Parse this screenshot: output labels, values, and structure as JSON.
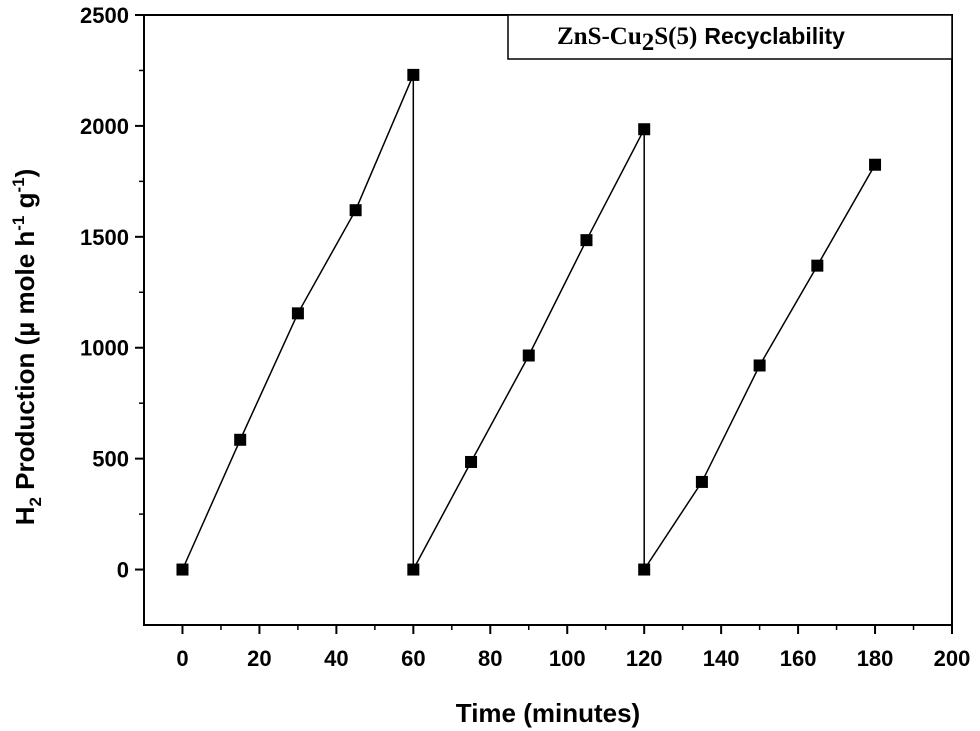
{
  "chart_data": {
    "type": "line",
    "title": "",
    "legend": {
      "label_prefix": "ZnS-Cu",
      "label_sub": "2",
      "label_mid": "S(5)",
      "label_suffix": "Recyclability",
      "placement": "top-right"
    },
    "xlabel": "Time (minutes)",
    "ylabel": {
      "prefix": "H",
      "sub": "2",
      "main": " Production (µ mole h",
      "sup1": "-1",
      "mid": " g",
      "sup2": "-1",
      "suffix": ")"
    },
    "xlim": [
      -10,
      200
    ],
    "ylim": [
      -250,
      2500
    ],
    "xticks": [
      0,
      20,
      40,
      60,
      80,
      100,
      120,
      140,
      160,
      180,
      200
    ],
    "yticks": [
      0,
      500,
      1000,
      1500,
      2000,
      2500
    ],
    "grid": false,
    "marker": "square",
    "series": [
      {
        "color": "#000000",
        "x": [
          0,
          15,
          30,
          45,
          60,
          60,
          75,
          90,
          105,
          120,
          120,
          135,
          150,
          165,
          180
        ],
        "y": [
          0,
          585,
          1155,
          1620,
          2230,
          0,
          485,
          965,
          1485,
          1985,
          0,
          395,
          920,
          1370,
          1825
        ]
      }
    ]
  }
}
